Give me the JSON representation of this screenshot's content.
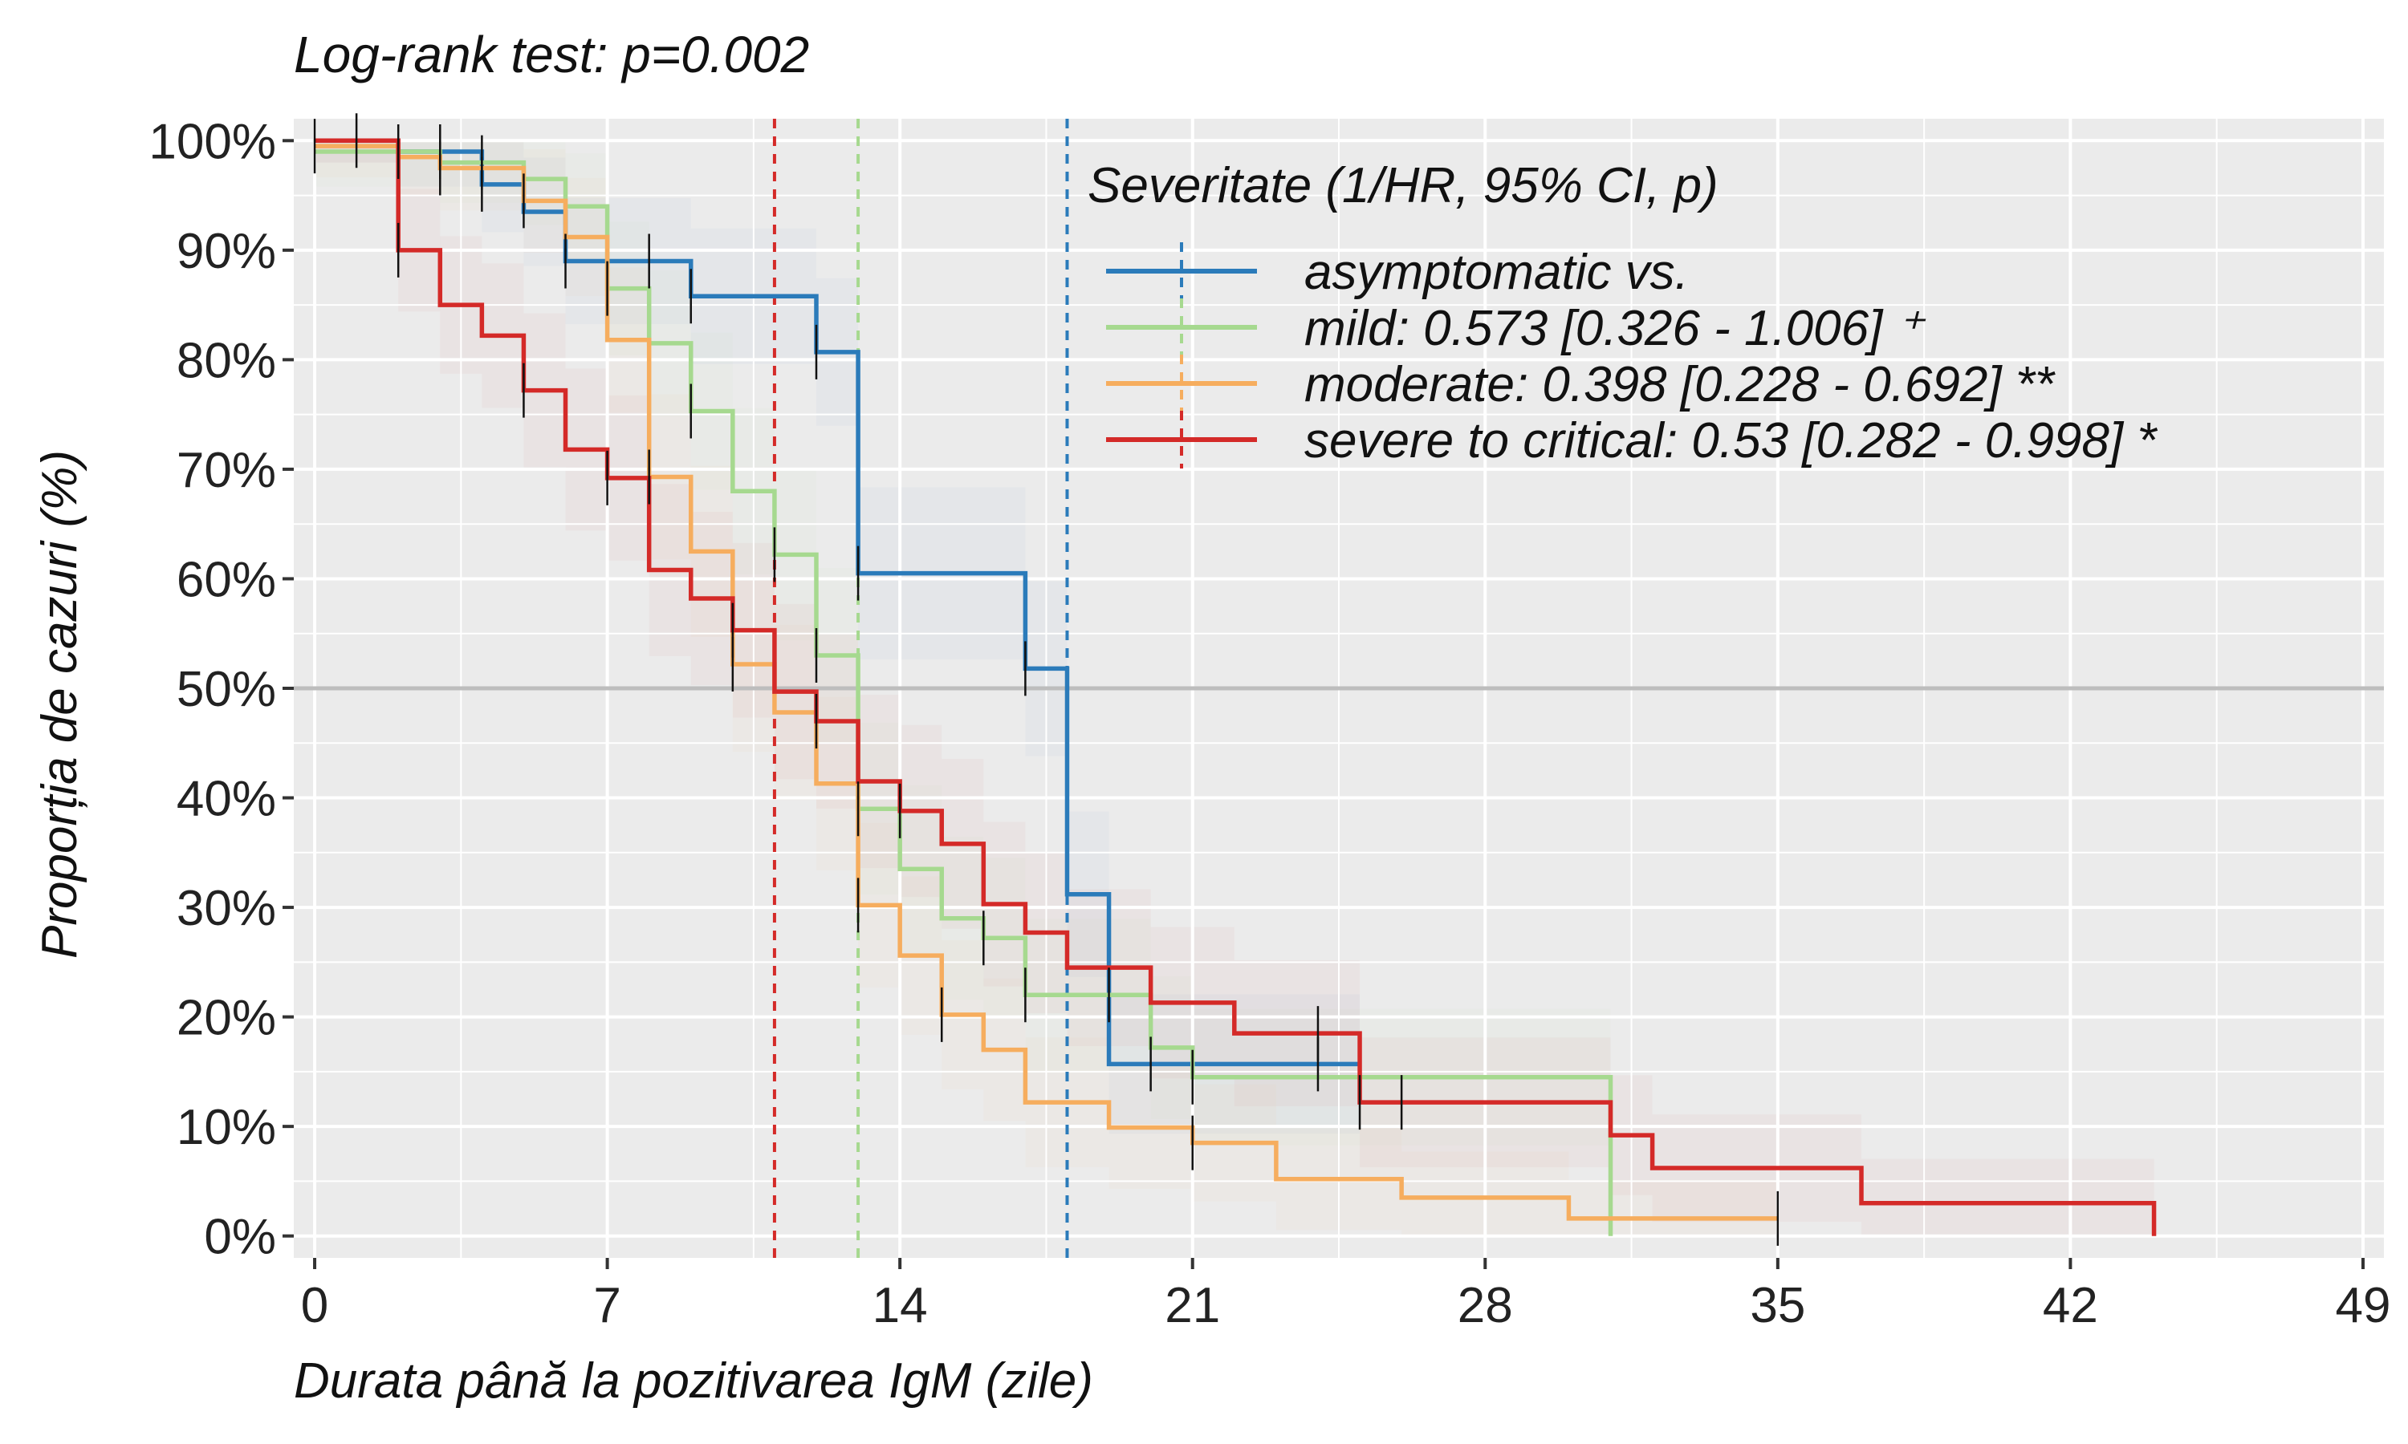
{
  "chart_data": {
    "type": "line",
    "subtitle": "Log-rank test: p=0.002",
    "xlabel": "Durata până la pozitivarea IgM (zile)",
    "ylabel": "Proporția de cazuri (%)",
    "xlim": [
      -0.5,
      49.5
    ],
    "ylim": [
      -0.02,
      1.02
    ],
    "x_ticks": [
      0,
      7,
      14,
      21,
      28,
      35,
      42,
      49
    ],
    "x_tick_labels": [
      "0",
      "7",
      "14",
      "21",
      "28",
      "35",
      "42",
      "49"
    ],
    "y_ticks": [
      0,
      0.1,
      0.2,
      0.3,
      0.4,
      0.5,
      0.6,
      0.7,
      0.8,
      0.9,
      1.0
    ],
    "y_tick_labels": [
      "0%",
      "10%",
      "20%",
      "30%",
      "40%",
      "50%",
      "60%",
      "70%",
      "80%",
      "90%",
      "100%"
    ],
    "grid": true,
    "reference_line_y": 0.5,
    "legend": {
      "title": "Severitate (1/HR, 95% CI, p)",
      "placement": "top-right",
      "entries": [
        "asymptomatic vs.",
        "mild: 0.573 [0.326 - 1.006] ⁺",
        "moderate: 0.398 [0.228 - 0.692] **",
        "severe to critical: 0.53 [0.282 - 0.998] *"
      ]
    },
    "series": [
      {
        "name": "asymptomatic",
        "color": "#2b7bba",
        "median": 18,
        "steps": [
          [
            0,
            1.0
          ],
          [
            2,
            0.99
          ],
          [
            4,
            0.96
          ],
          [
            5,
            0.935
          ],
          [
            6,
            0.89
          ],
          [
            9,
            0.858
          ],
          [
            12,
            0.807
          ],
          [
            13,
            0.605
          ],
          [
            17,
            0.518
          ],
          [
            18,
            0.312
          ],
          [
            19,
            0.157
          ],
          [
            24,
            0.157
          ],
          [
            25,
            0.157
          ]
        ],
        "end_x": 25,
        "censor_x": [
          1,
          3,
          4,
          6,
          8,
          9,
          12,
          13,
          17,
          20,
          24
        ]
      },
      {
        "name": "mild",
        "color": "#a6d98f",
        "median": 13,
        "steps": [
          [
            0,
            0.99
          ],
          [
            3,
            0.98
          ],
          [
            5,
            0.965
          ],
          [
            6,
            0.94
          ],
          [
            7,
            0.865
          ],
          [
            8,
            0.815
          ],
          [
            9,
            0.753
          ],
          [
            10,
            0.68
          ],
          [
            11,
            0.622
          ],
          [
            12,
            0.53
          ],
          [
            13,
            0.39
          ],
          [
            14,
            0.335
          ],
          [
            15,
            0.29
          ],
          [
            16,
            0.272
          ],
          [
            17,
            0.22
          ],
          [
            20,
            0.172
          ],
          [
            21,
            0.145
          ],
          [
            31,
            0.0
          ]
        ],
        "end_x": 31,
        "censor_x": [
          2,
          4,
          7,
          9,
          11,
          12,
          13,
          16,
          17,
          19,
          21
        ]
      },
      {
        "name": "moderate",
        "color": "#f6ad5e",
        "median": 11,
        "steps": [
          [
            0,
            0.995
          ],
          [
            2,
            0.985
          ],
          [
            3,
            0.975
          ],
          [
            5,
            0.945
          ],
          [
            6,
            0.912
          ],
          [
            7,
            0.818
          ],
          [
            8,
            0.693
          ],
          [
            9,
            0.625
          ],
          [
            10,
            0.522
          ],
          [
            11,
            0.478
          ],
          [
            12,
            0.413
          ],
          [
            13,
            0.302
          ],
          [
            14,
            0.256
          ],
          [
            15,
            0.202
          ],
          [
            16,
            0.17
          ],
          [
            17,
            0.122
          ],
          [
            19,
            0.099
          ],
          [
            21,
            0.085
          ],
          [
            23,
            0.052
          ],
          [
            26,
            0.035
          ],
          [
            30,
            0.016
          ],
          [
            35,
            0.016
          ]
        ],
        "end_x": 35,
        "censor_x": [
          0,
          3,
          5,
          8,
          10,
          13,
          15,
          21,
          35
        ]
      },
      {
        "name": "severe to critical",
        "color": "#d42a28",
        "median": 11,
        "steps": [
          [
            0,
            1.0
          ],
          [
            2,
            0.9
          ],
          [
            3,
            0.85
          ],
          [
            4,
            0.822
          ],
          [
            5,
            0.772
          ],
          [
            6,
            0.718
          ],
          [
            7,
            0.692
          ],
          [
            8,
            0.608
          ],
          [
            9,
            0.582
          ],
          [
            10,
            0.553
          ],
          [
            11,
            0.497
          ],
          [
            12,
            0.47
          ],
          [
            13,
            0.415
          ],
          [
            14,
            0.388
          ],
          [
            15,
            0.358
          ],
          [
            16,
            0.303
          ],
          [
            17,
            0.277
          ],
          [
            18,
            0.245
          ],
          [
            20,
            0.213
          ],
          [
            22,
            0.185
          ],
          [
            25,
            0.122
          ],
          [
            31,
            0.092
          ],
          [
            32,
            0.062
          ],
          [
            37,
            0.03
          ],
          [
            44,
            0.0
          ]
        ],
        "end_x": 44,
        "censor_x": [
          2,
          5,
          7,
          10,
          12,
          14,
          24,
          25,
          26
        ]
      }
    ]
  }
}
